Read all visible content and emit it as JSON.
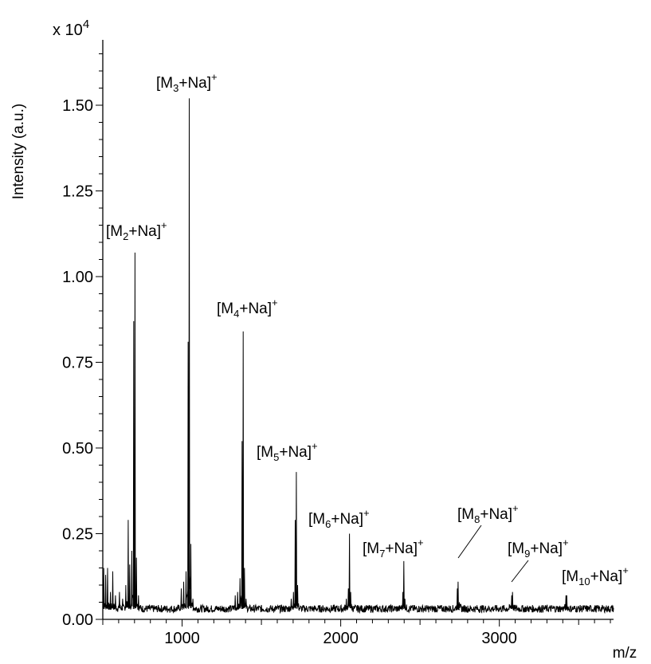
{
  "chart_data": {
    "type": "line",
    "title": "",
    "xlabel": "m/z",
    "ylabel": "Intensity (a.u.)",
    "scale_factor_label": "x 10",
    "scale_factor_exponent": "4",
    "xlim": [
      500,
      3720
    ],
    "ylim": [
      0,
      1.65
    ],
    "x_ticks": [
      1000,
      2000,
      3000
    ],
    "x_tick_labels": [
      "1000",
      "2000",
      "3000"
    ],
    "y_ticks": [
      0,
      0.25,
      0.5,
      0.75,
      1.0,
      1.25,
      1.5
    ],
    "y_tick_labels": [
      "0.00",
      "0.25",
      "0.50",
      "0.75",
      "1.00",
      "1.25",
      "1.50"
    ],
    "grid": false,
    "baseline": 0.03,
    "peaks": [
      {
        "x": 506,
        "y": 0.15
      },
      {
        "x": 518,
        "y": 0.13
      },
      {
        "x": 530,
        "y": 0.15
      },
      {
        "x": 548,
        "y": 0.08
      },
      {
        "x": 563,
        "y": 0.14
      },
      {
        "x": 580,
        "y": 0.07
      },
      {
        "x": 605,
        "y": 0.08
      },
      {
        "x": 625,
        "y": 0.06
      },
      {
        "x": 645,
        "y": 0.1
      },
      {
        "x": 660,
        "y": 0.29
      },
      {
        "x": 670,
        "y": 0.16
      },
      {
        "x": 683,
        "y": 0.2
      },
      {
        "x": 695,
        "y": 0.87
      },
      {
        "x": 703,
        "y": 1.07
      },
      {
        "x": 712,
        "y": 0.18
      },
      {
        "x": 725,
        "y": 0.07
      },
      {
        "x": 995,
        "y": 0.09
      },
      {
        "x": 1010,
        "y": 0.11
      },
      {
        "x": 1025,
        "y": 0.14
      },
      {
        "x": 1038,
        "y": 0.81
      },
      {
        "x": 1045,
        "y": 1.52
      },
      {
        "x": 1055,
        "y": 0.22
      },
      {
        "x": 1068,
        "y": 0.06
      },
      {
        "x": 1335,
        "y": 0.07
      },
      {
        "x": 1350,
        "y": 0.08
      },
      {
        "x": 1365,
        "y": 0.12
      },
      {
        "x": 1378,
        "y": 0.52
      },
      {
        "x": 1385,
        "y": 0.84
      },
      {
        "x": 1393,
        "y": 0.15
      },
      {
        "x": 1403,
        "y": 0.06
      },
      {
        "x": 1688,
        "y": 0.06
      },
      {
        "x": 1702,
        "y": 0.08
      },
      {
        "x": 1713,
        "y": 0.29
      },
      {
        "x": 1720,
        "y": 0.43
      },
      {
        "x": 1728,
        "y": 0.1
      },
      {
        "x": 2035,
        "y": 0.06
      },
      {
        "x": 2048,
        "y": 0.09
      },
      {
        "x": 2055,
        "y": 0.25
      },
      {
        "x": 2063,
        "y": 0.08
      },
      {
        "x": 2392,
        "y": 0.08
      },
      {
        "x": 2398,
        "y": 0.17
      },
      {
        "x": 2405,
        "y": 0.06
      },
      {
        "x": 2735,
        "y": 0.09
      },
      {
        "x": 2740,
        "y": 0.11
      },
      {
        "x": 2748,
        "y": 0.05
      },
      {
        "x": 3078,
        "y": 0.07
      },
      {
        "x": 3083,
        "y": 0.08
      },
      {
        "x": 3420,
        "y": 0.07
      },
      {
        "x": 3425,
        "y": 0.07
      }
    ],
    "annotations": [
      {
        "base": "M",
        "sub": "2",
        "rest": "+Na]",
        "sup": "+",
        "x": 703,
        "y": 1.07
      },
      {
        "base": "M",
        "sub": "3",
        "rest": "+Na]",
        "sup": "+",
        "x": 1045,
        "y": 1.52
      },
      {
        "base": "M",
        "sub": "4",
        "rest": "+Na]",
        "sup": "+",
        "x": 1385,
        "y": 0.84
      },
      {
        "base": "M",
        "sub": "5",
        "rest": "+Na]",
        "sup": "+",
        "x": 1720,
        "y": 0.43
      },
      {
        "base": "M",
        "sub": "6",
        "rest": "+Na]",
        "sup": "+",
        "x": 2055,
        "y": 0.25
      },
      {
        "base": "M",
        "sub": "7",
        "rest": "+Na]",
        "sup": "+",
        "x": 2398,
        "y": 0.17
      },
      {
        "base": "M",
        "sub": "8",
        "rest": "+Na]",
        "sup": "+",
        "x": 2740,
        "y": 0.11
      },
      {
        "base": "M",
        "sub": "9",
        "rest": "+Na]",
        "sup": "+",
        "x": 3083,
        "y": 0.08
      },
      {
        "base": "M",
        "sub": "10",
        "rest": "+Na]",
        "sup": "+",
        "x": 3425,
        "y": 0.07
      }
    ]
  }
}
